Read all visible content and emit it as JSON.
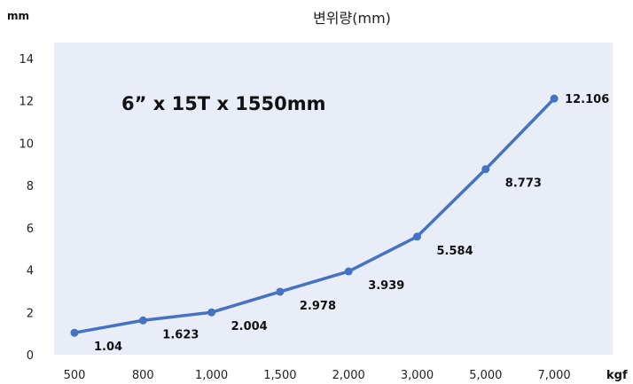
{
  "chart_data": {
    "type": "line",
    "title": "변위량(mm)",
    "annotation": "6” x 15T x 1550mm",
    "xlabel": "kgf",
    "ylabel": "mm",
    "categories": [
      "500",
      "800",
      "1,000",
      "1,500",
      "2,000",
      "3,000",
      "5,000",
      "7,000"
    ],
    "series": [
      {
        "values": [
          1.04,
          1.623,
          2.004,
          2.978,
          3.939,
          5.584,
          8.773,
          12.106
        ],
        "labels": [
          "1.04",
          "1.623",
          "2.004",
          "2.978",
          "3.939",
          "5.584",
          "8.773",
          "12.106"
        ]
      }
    ],
    "yticks": [
      "0",
      "2",
      "4",
      "6",
      "8",
      "10",
      "12",
      "14"
    ],
    "ylim": [
      0,
      14
    ],
    "grid": false,
    "legend": false,
    "colors": {
      "plot_bg": "#e9edf7",
      "line": "#4472c4"
    }
  }
}
